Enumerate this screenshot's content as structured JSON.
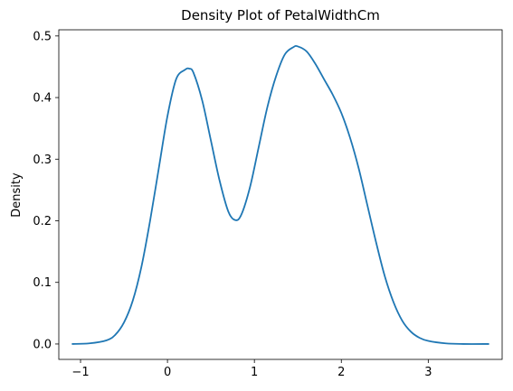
{
  "chart_data": {
    "type": "line",
    "title": "Density Plot of PetalWidthCm",
    "xlabel": "",
    "ylabel": "Density",
    "xlim": [
      -1.25,
      3.85
    ],
    "ylim": [
      -0.025,
      0.51
    ],
    "x_ticks": [
      -1,
      0,
      1,
      2,
      3
    ],
    "y_ticks": [
      0.0,
      0.1,
      0.2,
      0.3,
      0.4,
      0.5
    ],
    "x_tick_labels": [
      "−1",
      "0",
      "1",
      "2",
      "3"
    ],
    "y_tick_labels": [
      "0.0",
      "0.1",
      "0.2",
      "0.3",
      "0.4",
      "0.5"
    ],
    "grid": false,
    "line_color": "#1f77b4",
    "series": [
      {
        "x": [
          -1.1,
          -0.9,
          -0.7,
          -0.6,
          -0.5,
          -0.4,
          -0.3,
          -0.2,
          -0.1,
          0.0,
          0.1,
          0.2,
          0.25,
          0.3,
          0.4,
          0.5,
          0.6,
          0.7,
          0.78,
          0.85,
          0.95,
          1.05,
          1.15,
          1.25,
          1.35,
          1.45,
          1.5,
          1.6,
          1.7,
          1.8,
          1.9,
          2.0,
          2.1,
          2.2,
          2.3,
          2.4,
          2.5,
          2.6,
          2.7,
          2.8,
          2.9,
          3.0,
          3.2,
          3.4,
          3.7
        ],
        "y": [
          0.0,
          0.001,
          0.006,
          0.015,
          0.035,
          0.07,
          0.125,
          0.2,
          0.285,
          0.37,
          0.43,
          0.445,
          0.447,
          0.44,
          0.395,
          0.33,
          0.265,
          0.215,
          0.201,
          0.21,
          0.255,
          0.32,
          0.385,
          0.435,
          0.47,
          0.482,
          0.483,
          0.475,
          0.455,
          0.43,
          0.405,
          0.375,
          0.335,
          0.285,
          0.225,
          0.165,
          0.11,
          0.068,
          0.038,
          0.02,
          0.01,
          0.005,
          0.001,
          0.0,
          0.0
        ]
      }
    ]
  }
}
